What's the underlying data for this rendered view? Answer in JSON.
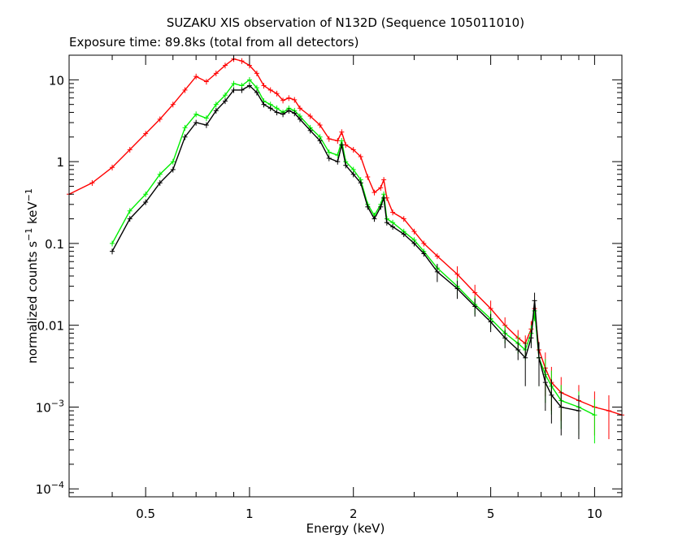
{
  "chart_data": {
    "type": "scatter",
    "title": "SUZAKU XIS observation of N132D (Sequence 105011010)",
    "subtitle": "Exposure time: 89.8ks (total from all detectors)",
    "xlabel": "Energy (keV)",
    "ylabel": "normalized counts s^-1 keV^-1",
    "x_scale": "log",
    "y_scale": "log",
    "xlim": [
      0.3,
      12.0
    ],
    "ylim": [
      8e-05,
      20
    ],
    "x_ticks": [
      {
        "value": 0.5,
        "label": "0.5"
      },
      {
        "value": 1,
        "label": "1"
      },
      {
        "value": 2,
        "label": "2"
      },
      {
        "value": 5,
        "label": "5"
      },
      {
        "value": 10,
        "label": "10"
      }
    ],
    "y_ticks": [
      {
        "value": 10,
        "label": "10"
      },
      {
        "value": 1,
        "label": "1"
      },
      {
        "value": 0.1,
        "label": "0.1"
      },
      {
        "value": 0.01,
        "label": "0.01"
      }
    ],
    "y_ticks_exp": [
      {
        "value": 0.001,
        "base": "10",
        "exp": "-3"
      },
      {
        "value": 0.0001,
        "base": "10",
        "exp": "-4"
      }
    ],
    "colors": {
      "frame": "#000000"
    },
    "grid": false,
    "series": [
      {
        "color": "#ff0000",
        "x": [
          0.3,
          0.35,
          0.4,
          0.45,
          0.5,
          0.55,
          0.6,
          0.65,
          0.7,
          0.75,
          0.8,
          0.85,
          0.9,
          0.95,
          1.0,
          1.05,
          1.1,
          1.15,
          1.2,
          1.25,
          1.3,
          1.35,
          1.4,
          1.5,
          1.6,
          1.7,
          1.8,
          1.85,
          1.9,
          2.0,
          2.1,
          2.2,
          2.3,
          2.4,
          2.45,
          2.5,
          2.6,
          2.8,
          3.0,
          3.2,
          3.5,
          4.0,
          4.5,
          5.0,
          5.5,
          6.0,
          6.3,
          6.55,
          6.7,
          6.9,
          7.2,
          7.5,
          8.0,
          9.0,
          10.0,
          11.0,
          12.0
        ],
        "y": [
          0.4,
          0.55,
          0.85,
          1.4,
          2.2,
          3.3,
          5.0,
          7.5,
          11,
          9.5,
          12,
          15,
          18,
          17,
          15,
          12,
          8.5,
          7.5,
          6.8,
          5.6,
          6.0,
          5.7,
          4.5,
          3.6,
          2.8,
          1.9,
          1.8,
          2.3,
          1.6,
          1.4,
          1.15,
          0.65,
          0.42,
          0.48,
          0.6,
          0.36,
          0.24,
          0.2,
          0.14,
          0.1,
          0.07,
          0.042,
          0.025,
          0.016,
          0.01,
          0.007,
          0.006,
          0.009,
          0.016,
          0.005,
          0.003,
          0.002,
          0.0015,
          0.0012,
          0.001,
          0.0009,
          0.0008
        ]
      },
      {
        "color": "#00ee00",
        "x": [
          0.4,
          0.45,
          0.5,
          0.55,
          0.6,
          0.65,
          0.7,
          0.75,
          0.8,
          0.85,
          0.9,
          0.95,
          1.0,
          1.05,
          1.1,
          1.15,
          1.2,
          1.25,
          1.3,
          1.35,
          1.4,
          1.5,
          1.6,
          1.7,
          1.8,
          1.85,
          1.9,
          2.0,
          2.1,
          2.2,
          2.3,
          2.4,
          2.45,
          2.5,
          2.6,
          2.8,
          3.0,
          3.2,
          3.5,
          4.0,
          4.5,
          5.0,
          5.5,
          6.0,
          6.3,
          6.55,
          6.7,
          6.9,
          7.2,
          7.5,
          8.0,
          9.0,
          10.0
        ],
        "y": [
          0.1,
          0.25,
          0.4,
          0.7,
          1.0,
          2.6,
          3.8,
          3.4,
          5.0,
          6.5,
          9.0,
          8.5,
          10,
          8.0,
          5.5,
          5.0,
          4.5,
          4.0,
          4.5,
          4.2,
          3.6,
          2.6,
          2.0,
          1.3,
          1.2,
          1.8,
          1.0,
          0.8,
          0.6,
          0.3,
          0.22,
          0.3,
          0.4,
          0.2,
          0.18,
          0.14,
          0.11,
          0.08,
          0.05,
          0.03,
          0.018,
          0.012,
          0.008,
          0.006,
          0.005,
          0.008,
          0.015,
          0.004,
          0.0025,
          0.0018,
          0.0012,
          0.001,
          0.0008
        ]
      },
      {
        "color": "#000000",
        "x": [
          0.4,
          0.45,
          0.5,
          0.55,
          0.6,
          0.65,
          0.7,
          0.75,
          0.8,
          0.85,
          0.9,
          0.95,
          1.0,
          1.05,
          1.1,
          1.15,
          1.2,
          1.25,
          1.3,
          1.35,
          1.4,
          1.5,
          1.6,
          1.7,
          1.8,
          1.85,
          1.9,
          2.0,
          2.1,
          2.2,
          2.3,
          2.4,
          2.45,
          2.5,
          2.6,
          2.8,
          3.0,
          3.2,
          3.5,
          4.0,
          4.5,
          5.0,
          5.5,
          6.0,
          6.3,
          6.55,
          6.7,
          6.9,
          7.2,
          7.5,
          8.0,
          9.0
        ],
        "y": [
          0.08,
          0.2,
          0.32,
          0.55,
          0.8,
          2.0,
          3.0,
          2.8,
          4.2,
          5.5,
          7.5,
          7.5,
          8.5,
          7.0,
          5.0,
          4.5,
          4.0,
          3.8,
          4.2,
          3.9,
          3.3,
          2.4,
          1.8,
          1.1,
          1.0,
          1.6,
          0.9,
          0.7,
          0.55,
          0.28,
          0.2,
          0.28,
          0.36,
          0.18,
          0.16,
          0.13,
          0.1,
          0.075,
          0.045,
          0.028,
          0.017,
          0.011,
          0.007,
          0.005,
          0.004,
          0.007,
          0.02,
          0.004,
          0.002,
          0.0014,
          0.001,
          0.0009
        ]
      }
    ]
  }
}
